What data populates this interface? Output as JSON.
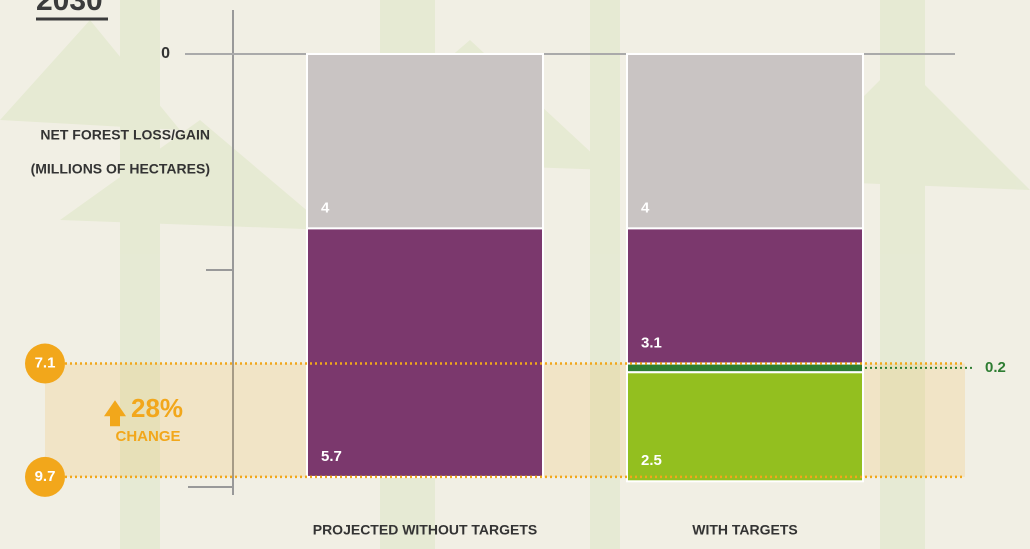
{
  "chart_data": {
    "type": "bar",
    "stacked": true,
    "inverted_y": true,
    "title": "2030",
    "y_label_lines": [
      "NET FOREST LOSS/GAIN",
      "(MILLIONS OF HECTARES)"
    ],
    "categories": [
      "PROJECTED WITHOUT TARGETS",
      "WITH TARGETS"
    ],
    "series": [
      {
        "color": "#c9c4c3",
        "values": [
          4,
          4
        ]
      },
      {
        "color": "#7b386d",
        "values": [
          5.7,
          3.1
        ]
      },
      {
        "color": "#2e7d32",
        "values": [
          null,
          0.2
        ]
      },
      {
        "color": "#93bf1f",
        "values": [
          null,
          2.5
        ]
      }
    ],
    "ylim": [
      0,
      10
    ],
    "yticks": [
      0
    ],
    "reference_lines": [
      7.1,
      9.7
    ],
    "reference_color": "#f2a71b",
    "change_label": "28%",
    "change_text": "CHANGE"
  }
}
